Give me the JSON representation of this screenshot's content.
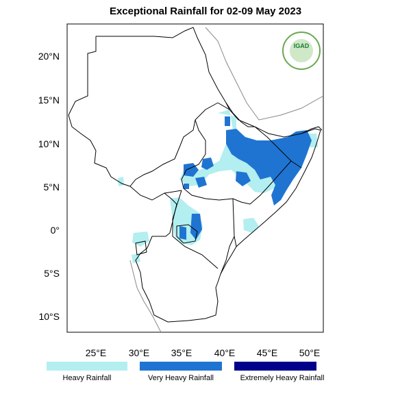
{
  "title": "Exceptional Rainfall for 02-09 May 2023",
  "y_axis": [
    "20°N",
    "15°N",
    "10°N",
    "5°N",
    "0°",
    "5°S",
    "10°S"
  ],
  "x_axis": [
    "25°E",
    "30°E",
    "35°E",
    "40°E",
    "45°E",
    "50°E"
  ],
  "logo_text": "IGAD",
  "legend": [
    {
      "label": "Heavy Rainfall",
      "color": "#b3eef0"
    },
    {
      "label": "Very Heavy Rainfall",
      "color": "#1f74d2"
    },
    {
      "label": "Extremely Heavy Rainfall",
      "color": "#00008b"
    }
  ],
  "colors": {
    "heavy": "#b3eef0",
    "very_heavy": "#1f74d2",
    "extreme": "#00008b",
    "border": "#000000",
    "coast": "#888888"
  }
}
